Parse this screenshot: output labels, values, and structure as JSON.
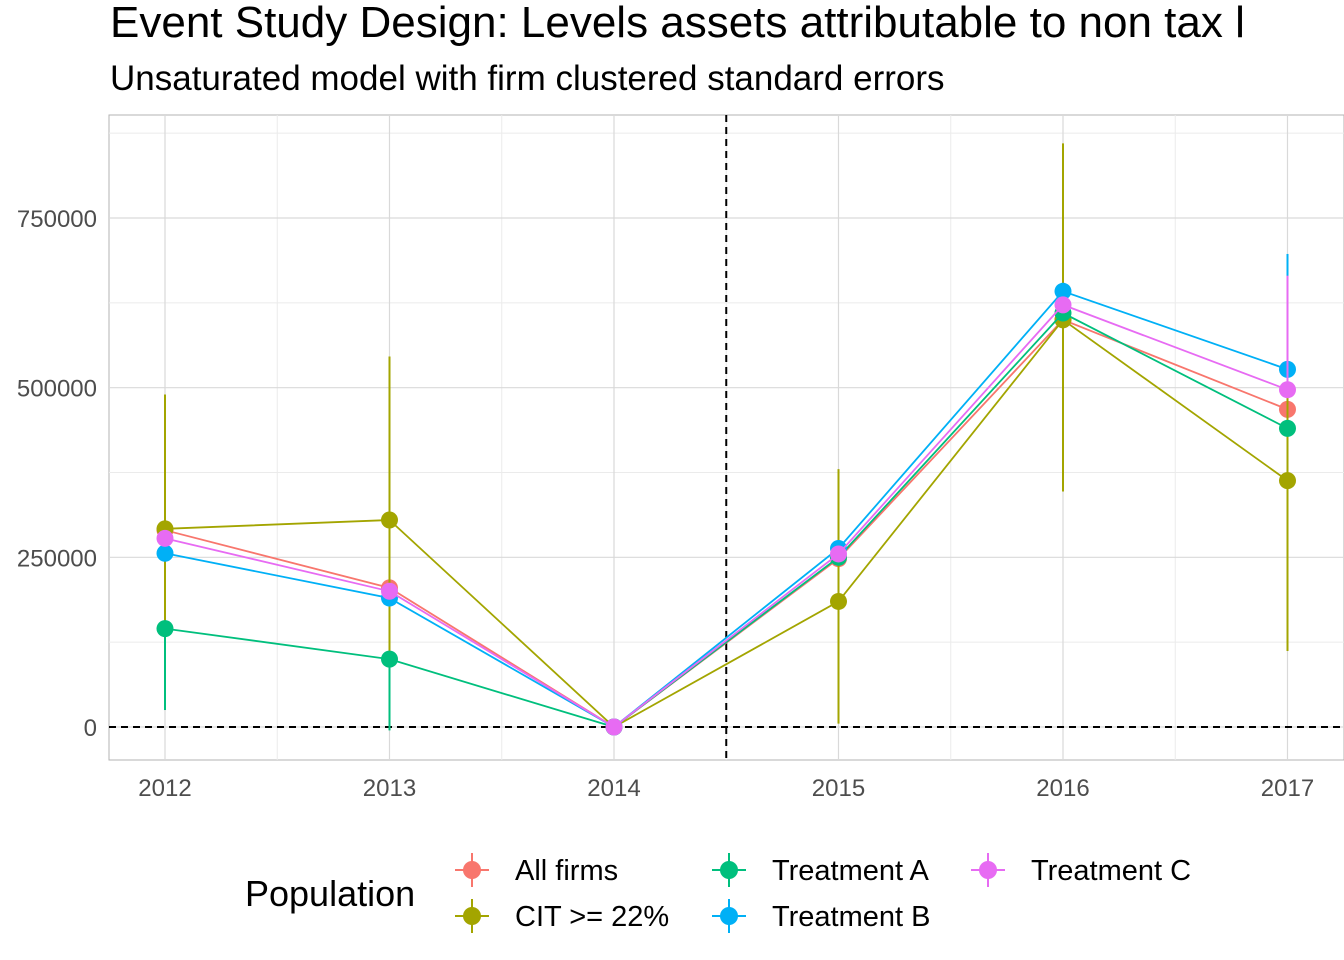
{
  "chart_data": {
    "type": "line",
    "title": "Event Study Design: Levels assets attributable to non tax l",
    "subtitle": "Unsaturated model with firm clustered standard errors",
    "x": [
      "2012",
      "2013",
      "2014",
      "2015",
      "2016",
      "2017"
    ],
    "ylim": [
      -50000,
      860000
    ],
    "yticks": [
      0,
      250000,
      500000,
      750000
    ],
    "ytick_labels": [
      "0",
      "250000",
      "500000",
      "750000"
    ],
    "grid": true,
    "reference_lines": {
      "horizontal_y": 0,
      "vertical_x": 2014.5
    },
    "legend": {
      "title": "Population",
      "position": "bottom"
    },
    "series": [
      {
        "name": "All firms",
        "color": "#F8766D",
        "values": [
          290000,
          205000,
          0,
          248000,
          600000,
          468000
        ],
        "lower": [
          null,
          null,
          0,
          null,
          null,
          null
        ],
        "upper": [
          null,
          null,
          0,
          null,
          null,
          610000
        ]
      },
      {
        "name": "CIT >= 22%",
        "color": "#A3A500",
        "values": [
          292000,
          305000,
          0,
          185000,
          600000,
          363000
        ],
        "lower": [
          95000,
          65000,
          0,
          5000,
          347000,
          112000
        ],
        "upper": [
          490000,
          546000,
          0,
          380000,
          860000,
          615000
        ]
      },
      {
        "name": "Treatment A",
        "color": "#00BF7D",
        "values": [
          145000,
          100000,
          0,
          250000,
          610000,
          440000
        ],
        "lower": [
          25000,
          -5000,
          0,
          null,
          null,
          null
        ],
        "upper": [
          null,
          null,
          0,
          null,
          null,
          null
        ]
      },
      {
        "name": "Treatment B",
        "color": "#00B0F6",
        "values": [
          256000,
          190000,
          0,
          263000,
          642000,
          527000
        ],
        "lower": [
          null,
          null,
          0,
          null,
          null,
          null
        ],
        "upper": [
          null,
          null,
          0,
          null,
          null,
          697000
        ]
      },
      {
        "name": "Treatment C",
        "color": "#E76BF3",
        "values": [
          278000,
          200000,
          0,
          255000,
          622000,
          497000
        ],
        "lower": [
          null,
          null,
          0,
          null,
          null,
          null
        ],
        "upper": [
          null,
          null,
          0,
          null,
          null,
          665000
        ]
      }
    ]
  }
}
